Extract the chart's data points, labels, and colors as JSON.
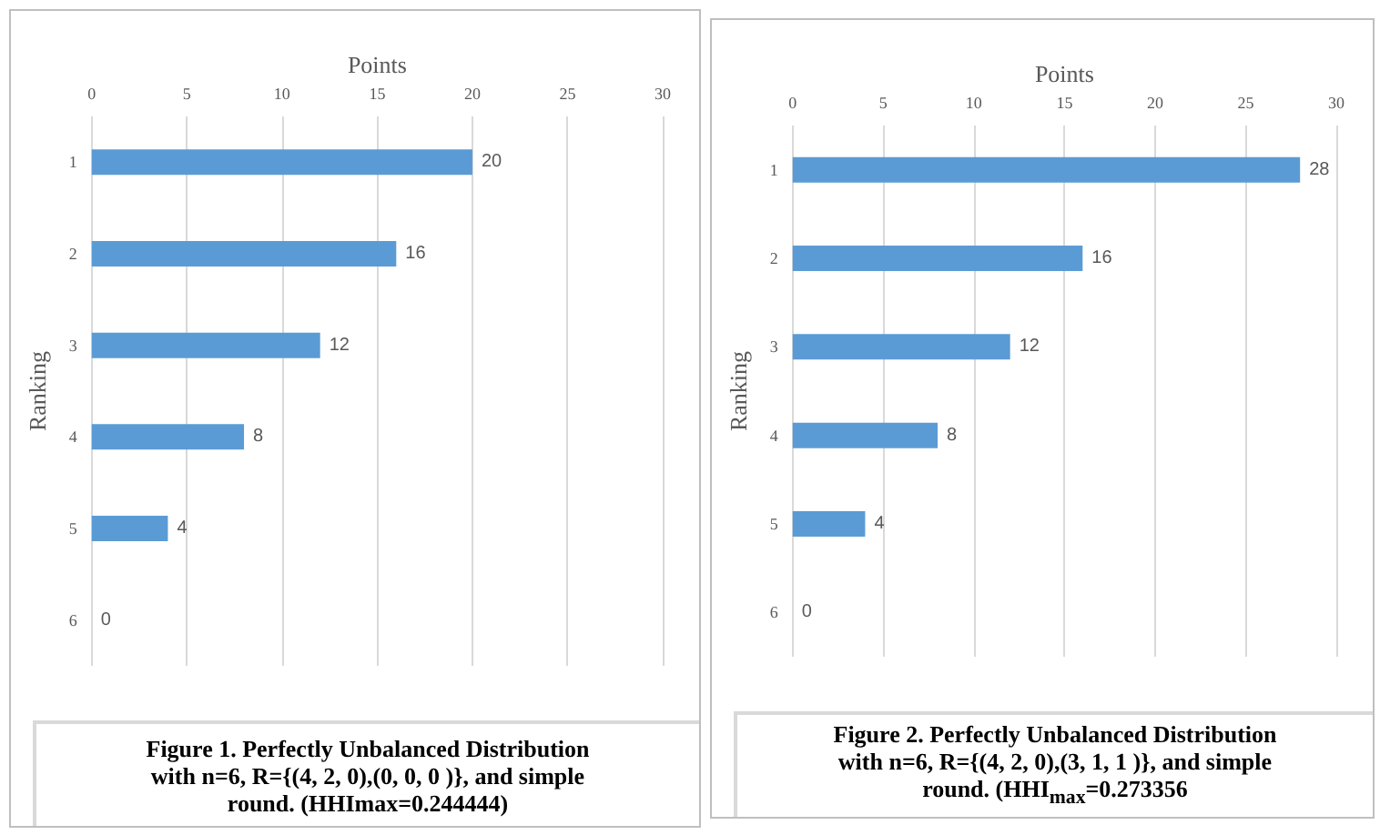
{
  "chart_data": [
    {
      "type": "bar",
      "orientation": "horizontal",
      "xlabel": "Points",
      "ylabel": "Ranking",
      "categories": [
        "1",
        "2",
        "3",
        "4",
        "5",
        "6"
      ],
      "values": [
        20,
        16,
        12,
        8,
        4,
        0
      ],
      "color": "#5b9bd5",
      "xlim": [
        0,
        30
      ],
      "xticks": [
        0,
        5,
        10,
        15,
        20,
        25,
        30
      ],
      "grid": "x",
      "data_labels": true,
      "annotations": [
        "Figure 1. Perfectly Unbalanced Distribution with n=6, R={(4, 2, 0),(0, 0, 0 )}, and simple round. (HHImax=0.244444)"
      ]
    },
    {
      "type": "bar",
      "orientation": "horizontal",
      "xlabel": "Points",
      "ylabel": "Ranking",
      "categories": [
        "1",
        "2",
        "3",
        "4",
        "5",
        "6"
      ],
      "values": [
        28,
        16,
        12,
        8,
        4,
        0
      ],
      "color": "#5b9bd5",
      "xlim": [
        0,
        30
      ],
      "xticks": [
        0,
        5,
        10,
        15,
        20,
        25,
        30
      ],
      "grid": "x",
      "data_labels": true,
      "annotations": [
        "Figure 2. Perfectly Unbalanced Distribution with n=6, R={(4, 2, 0),(3, 1, 1 )}, and simple round. (HHI$_{max}$=0.273356"
      ]
    }
  ]
}
